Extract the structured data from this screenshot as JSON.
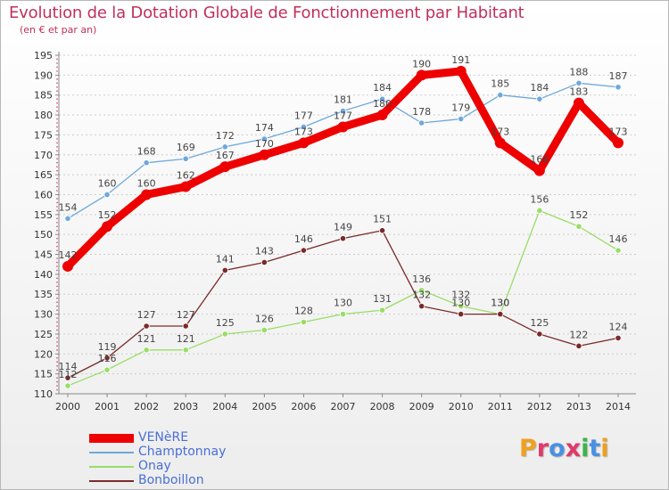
{
  "title": "Evolution de la Dotation Globale de Fonctionnement par Habitant",
  "subtitle": "(en € et par an)",
  "logo": {
    "text": "Proxiti",
    "letters": [
      {
        "ch": "P",
        "color": "#f0a020"
      },
      {
        "ch": "r",
        "color": "#e03a6a"
      },
      {
        "ch": "o",
        "color": "#4a90e2"
      },
      {
        "ch": "x",
        "color": "#e03a6a"
      },
      {
        "ch": "i",
        "color": "#3cb44a"
      },
      {
        "ch": "t",
        "color": "#4a90e2"
      },
      {
        "ch": "i",
        "color": "#f0a020"
      }
    ]
  },
  "chart_data": {
    "type": "line",
    "title": "Evolution de la Dotation Globale de Fonctionnement par Habitant",
    "subtitle": "(en € et par an)",
    "xlabel": "",
    "ylabel": "",
    "x": [
      2000,
      2001,
      2002,
      2003,
      2004,
      2005,
      2006,
      2007,
      2008,
      2009,
      2010,
      2011,
      2012,
      2013,
      2014
    ],
    "ylim": [
      110,
      195
    ],
    "yticks": [
      110,
      115,
      120,
      125,
      130,
      135,
      140,
      145,
      150,
      155,
      160,
      165,
      170,
      175,
      180,
      185,
      190,
      195
    ],
    "grid": "horizontal dashed",
    "legend_position": "bottom-left",
    "series": [
      {
        "name": "VENèRE",
        "color": "#ee0000",
        "thick": true,
        "values": [
          142,
          152,
          160,
          162,
          167,
          170,
          173,
          177,
          180,
          190,
          191,
          173,
          166,
          183,
          173
        ]
      },
      {
        "name": "Champtonnay",
        "color": "#6fa8dc",
        "thick": false,
        "values": [
          154,
          160,
          168,
          169,
          172,
          174,
          177,
          181,
          184,
          178,
          179,
          185,
          184,
          188,
          187
        ]
      },
      {
        "name": "Onay",
        "color": "#99dd66",
        "thick": false,
        "values": [
          112,
          116,
          121,
          121,
          125,
          126,
          128,
          130,
          131,
          136,
          132,
          130,
          156,
          152,
          146
        ]
      },
      {
        "name": "Bonboillon",
        "color": "#7a2a2a",
        "thick": false,
        "values": [
          114,
          119,
          127,
          127,
          141,
          143,
          146,
          149,
          151,
          132,
          130,
          130,
          125,
          122,
          124
        ]
      }
    ]
  }
}
